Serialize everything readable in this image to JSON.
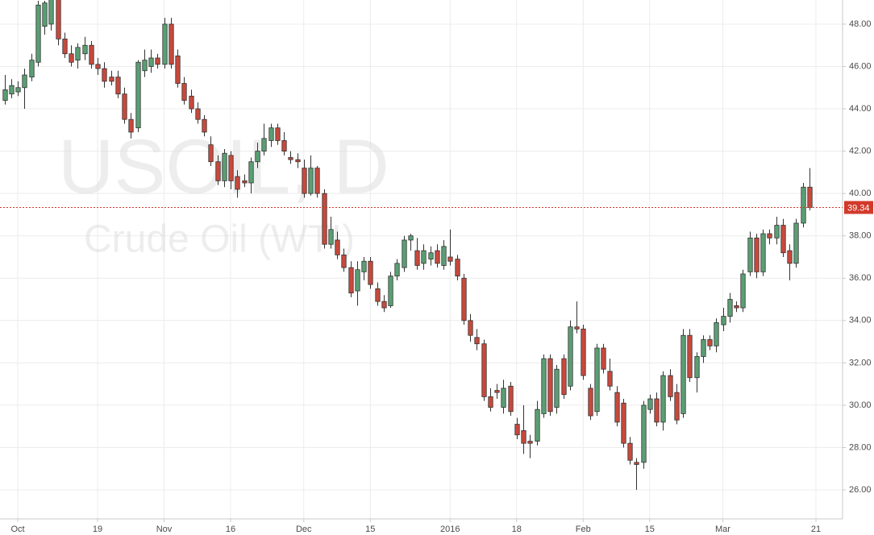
{
  "chart_data": {
    "type": "candlestick",
    "watermark_title": "USOIL, D",
    "watermark_subtitle": "Crude Oil (WTI)",
    "up_color": "#5a9f73",
    "down_color": "#c8493c",
    "grid": true,
    "xlim": [
      -0.67,
      126
    ],
    "xticks": [
      {
        "value": 2,
        "label": "Oct"
      },
      {
        "value": 14,
        "label": "19"
      },
      {
        "value": 24,
        "label": "Nov"
      },
      {
        "value": 34,
        "label": "16"
      },
      {
        "value": 45,
        "label": "Dec"
      },
      {
        "value": 55,
        "label": "15"
      },
      {
        "value": 67,
        "label": "2016"
      },
      {
        "value": 77,
        "label": "18"
      },
      {
        "value": 87,
        "label": "Feb"
      },
      {
        "value": 97,
        "label": "15"
      },
      {
        "value": 108,
        "label": "Mar"
      },
      {
        "value": 122,
        "label": "21"
      }
    ],
    "ylim": [
      24.63,
      49.14
    ],
    "yticks": [
      {
        "value": 26,
        "label": "26.00"
      },
      {
        "value": 28,
        "label": "28.00"
      },
      {
        "value": 30,
        "label": "30.00"
      },
      {
        "value": 32,
        "label": "32.00"
      },
      {
        "value": 34,
        "label": "34.00"
      },
      {
        "value": 36,
        "label": "36.00"
      },
      {
        "value": 38,
        "label": "38.00"
      },
      {
        "value": 40,
        "label": "40.00"
      },
      {
        "value": 42,
        "label": "42.00"
      },
      {
        "value": 44,
        "label": "44.00"
      },
      {
        "value": 46,
        "label": "46.00"
      },
      {
        "value": 48,
        "label": "48.00"
      }
    ],
    "last_price": 39.34,
    "last_price_color": "#d13a2a",
    "open": [
      44.4,
      44.7,
      44.8,
      45.0,
      45.5,
      46.2,
      47.9,
      48.0,
      49.2,
      47.3,
      46.6,
      46.3,
      46.6,
      47.0,
      46.1,
      45.9,
      45.5,
      45.5,
      44.7,
      43.5,
      43.1,
      45.8,
      46.0,
      46.4,
      46.1,
      48.0,
      46.5,
      45.2,
      44.6,
      44.0,
      43.5,
      42.3,
      41.5,
      40.6,
      41.8,
      40.8,
      40.6,
      40.5,
      41.5,
      42.0,
      42.5,
      43.1,
      42.5,
      41.7,
      41.6,
      41.2,
      40.0,
      41.2,
      40.0,
      37.6,
      37.8,
      37.1,
      36.5,
      35.4,
      36.3,
      36.8,
      35.5,
      34.9,
      34.7,
      36.1,
      36.5,
      37.8,
      37.3,
      36.7,
      36.9,
      37.3,
      36.6,
      37.0,
      36.9,
      36.0,
      34.0,
      33.2,
      32.9,
      30.4,
      30.7,
      29.9,
      30.9,
      29.1,
      28.8,
      28.3,
      28.3,
      29.6,
      32.2,
      29.9,
      32.2,
      30.9,
      33.7,
      33.6,
      30.8,
      29.7,
      32.7,
      31.6,
      30.6,
      30.1,
      28.2,
      27.3,
      27.3,
      29.8,
      30.3,
      29.2,
      31.4,
      30.6,
      29.6,
      33.3,
      31.3,
      32.3,
      33.1,
      32.8,
      33.8,
      34.2,
      34.7,
      34.6,
      36.3,
      37.9,
      36.3,
      38.1,
      37.9,
      38.5,
      37.3,
      36.7,
      38.6,
      40.3
    ],
    "high": [
      45.6,
      45.4,
      45.3,
      45.9,
      46.6,
      49.1,
      49.1,
      49.3,
      49.4,
      47.6,
      47.0,
      47.1,
      47.4,
      47.2,
      46.4,
      46.2,
      45.8,
      45.8,
      45.0,
      43.8,
      46.3,
      46.8,
      46.8,
      46.6,
      48.3,
      48.3,
      46.8,
      45.5,
      44.9,
      44.3,
      43.7,
      42.7,
      41.8,
      42.1,
      42.0,
      41.1,
      40.9,
      41.7,
      42.4,
      43.3,
      43.3,
      43.3,
      42.9,
      42.0,
      41.9,
      41.6,
      41.8,
      41.3,
      40.2,
      38.9,
      38.2,
      37.4,
      36.8,
      36.8,
      37.0,
      37.0,
      35.8,
      35.2,
      36.3,
      36.9,
      38.0,
      38.1,
      37.9,
      37.6,
      37.5,
      37.6,
      37.8,
      38.3,
      37.1,
      36.2,
      34.3,
      33.6,
      33.1,
      30.8,
      31.0,
      31.2,
      31.1,
      29.4,
      30.0,
      28.6,
      30.2,
      32.4,
      32.4,
      31.9,
      32.4,
      34.0,
      34.9,
      33.8,
      31.0,
      32.9,
      32.9,
      32.2,
      30.9,
      30.3,
      28.5,
      27.5,
      30.2,
      30.5,
      30.6,
      31.6,
      31.7,
      31.0,
      33.6,
      33.6,
      32.5,
      33.3,
      33.3,
      34.1,
      34.6,
      35.3,
      34.9,
      36.4,
      38.2,
      38.1,
      38.3,
      38.3,
      38.9,
      38.8,
      37.6,
      38.8,
      40.5,
      41.2
    ],
    "low": [
      44.2,
      44.5,
      44.6,
      44.0,
      45.3,
      46.0,
      47.5,
      47.7,
      47.0,
      46.4,
      46.0,
      45.9,
      46.3,
      45.9,
      45.6,
      45.0,
      45.1,
      44.5,
      43.3,
      42.6,
      42.9,
      45.5,
      45.7,
      45.9,
      45.9,
      45.9,
      45.0,
      44.2,
      43.8,
      43.3,
      42.7,
      41.3,
      40.4,
      40.3,
      40.2,
      39.8,
      40.3,
      40.0,
      41.2,
      41.8,
      42.2,
      42.3,
      41.8,
      41.4,
      41.2,
      39.8,
      39.9,
      39.8,
      37.4,
      37.4,
      36.9,
      36.3,
      35.1,
      34.7,
      35.9,
      35.5,
      34.7,
      34.4,
      34.6,
      35.9,
      36.3,
      37.3,
      36.4,
      36.4,
      36.6,
      36.5,
      36.4,
      36.6,
      35.9,
      33.8,
      33.0,
      32.6,
      30.2,
      29.7,
      30.3,
      29.6,
      29.5,
      28.4,
      27.7,
      27.5,
      28.1,
      29.4,
      29.5,
      29.6,
      30.3,
      30.7,
      33.4,
      31.2,
      29.3,
      29.5,
      31.5,
      30.7,
      29.0,
      28.0,
      27.2,
      26.0,
      27.0,
      29.6,
      29.0,
      28.8,
      30.2,
      29.1,
      29.4,
      31.1,
      30.6,
      32.0,
      32.6,
      32.5,
      33.5,
      33.9,
      34.4,
      34.4,
      36.1,
      36.0,
      36.1,
      37.6,
      37.6,
      37.0,
      35.9,
      36.5,
      38.4,
      39.2
    ],
    "close": [
      44.9,
      45.1,
      45.0,
      45.6,
      46.3,
      48.9,
      49.0,
      49.2,
      47.3,
      46.6,
      46.2,
      46.9,
      47.0,
      46.1,
      45.9,
      45.3,
      45.3,
      44.7,
      43.5,
      42.9,
      46.2,
      46.3,
      46.4,
      46.1,
      48.0,
      46.1,
      45.2,
      44.4,
      44.0,
      43.5,
      42.9,
      41.5,
      40.6,
      41.9,
      40.6,
      40.2,
      40.5,
      41.5,
      42.0,
      42.6,
      43.1,
      42.5,
      42.0,
      41.6,
      41.5,
      40.0,
      41.2,
      40.0,
      37.6,
      38.3,
      37.1,
      36.5,
      35.3,
      36.4,
      36.8,
      35.7,
      34.9,
      34.6,
      36.1,
      36.7,
      37.8,
      38.0,
      36.6,
      37.3,
      37.2,
      36.7,
      37.5,
      36.8,
      36.1,
      34.0,
      33.3,
      32.9,
      30.4,
      29.9,
      30.6,
      30.8,
      29.7,
      28.6,
      28.2,
      28.2,
      29.8,
      32.2,
      29.7,
      31.7,
      30.5,
      33.7,
      33.6,
      31.4,
      29.5,
      32.7,
      31.7,
      30.9,
      29.2,
      28.2,
      27.4,
      27.2,
      30.0,
      30.3,
      29.2,
      31.4,
      30.4,
      29.3,
      33.3,
      31.3,
      32.3,
      33.1,
      32.8,
      33.9,
      34.2,
      35.0,
      34.6,
      36.2,
      37.9,
      36.3,
      38.1,
      37.9,
      38.5,
      37.2,
      36.7,
      38.6,
      40.3,
      39.34
    ]
  }
}
